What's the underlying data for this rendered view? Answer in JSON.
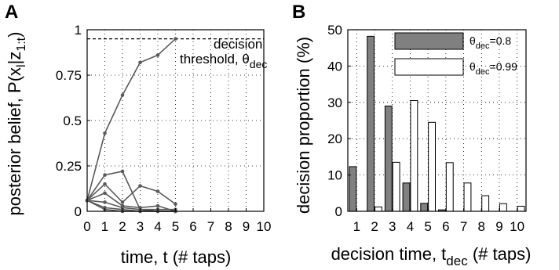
{
  "panels": {
    "a": {
      "label": "A"
    },
    "b": {
      "label": "B"
    }
  },
  "chart_data": [
    {
      "type": "line",
      "ylabel_main": "posterior belief, P(x",
      "ylabel_sub1": "l",
      "ylabel_mid": "|z",
      "ylabel_sub2": "1:t",
      "ylabel_end": ")",
      "xlabel": "time, t (# taps)",
      "xlim": [
        0,
        10
      ],
      "ylim": [
        0,
        1
      ],
      "xticks": [
        0,
        1,
        2,
        3,
        4,
        5,
        6,
        7,
        8,
        9,
        10
      ],
      "yticks": [
        0,
        0.25,
        0.5,
        0.75,
        1
      ],
      "ytick_labels": [
        "0",
        "0.25",
        "0.5",
        "0.75",
        "1"
      ],
      "grid": true,
      "line_color": "#5a5a5a",
      "threshold": {
        "y": 0.95,
        "label_line1": "decision",
        "label_line2": "threshold, θ",
        "label_sub": "dec"
      },
      "series": [
        {
          "x": [
            0,
            1,
            2,
            3,
            4,
            5
          ],
          "y": [
            0.06,
            0.43,
            0.64,
            0.82,
            0.86,
            0.95
          ]
        },
        {
          "x": [
            0,
            1,
            2,
            3,
            4,
            5
          ],
          "y": [
            0.06,
            0.2,
            0.22,
            0.01,
            0.01,
            0.01
          ]
        },
        {
          "x": [
            0,
            1,
            2,
            3,
            4,
            5
          ],
          "y": [
            0.06,
            0.15,
            0.05,
            0.14,
            0.11,
            0.04
          ]
        },
        {
          "x": [
            0,
            1,
            2,
            3,
            4,
            5
          ],
          "y": [
            0.06,
            0.1,
            0.03,
            0.02,
            0.03,
            0.0
          ]
        },
        {
          "x": [
            0,
            1,
            2,
            3,
            4,
            5
          ],
          "y": [
            0.06,
            0.05,
            0.02,
            0.01,
            0.0,
            0.0
          ]
        },
        {
          "x": [
            0,
            1,
            2,
            3,
            4,
            5
          ],
          "y": [
            0.06,
            0.02,
            0.01,
            0.0,
            0.0,
            0.0
          ]
        },
        {
          "x": [
            0,
            1,
            2,
            3,
            4,
            5
          ],
          "y": [
            0.06,
            0.01,
            0.0,
            0.0,
            0.0,
            0.0
          ]
        }
      ]
    },
    {
      "type": "bar",
      "ylabel": "decision proportion (%)",
      "xlabel_main": "decision time, t",
      "xlabel_sub": "dec",
      "xlabel_end": " (# taps)",
      "categories": [
        "1",
        "2",
        "3",
        "4",
        "5",
        "6",
        "7",
        "8",
        "9",
        "10"
      ],
      "ylim": [
        0,
        50
      ],
      "yticks": [
        0,
        10,
        20,
        30,
        40,
        50
      ],
      "grid": true,
      "legend_position": "top-right",
      "series": [
        {
          "theta": "θ",
          "sub": "dec",
          "value_label": "=0.8",
          "color": "#808080",
          "values": [
            12.3,
            48.2,
            29.0,
            7.8,
            2.2,
            0.4,
            0.0,
            0.0,
            0.0,
            0.0
          ]
        },
        {
          "theta": "θ",
          "sub": "dec",
          "value_label": "=0.99",
          "color": "#ffffff",
          "values": [
            0.0,
            1.2,
            13.5,
            30.5,
            24.5,
            13.4,
            7.8,
            4.3,
            2.1,
            1.4
          ]
        }
      ]
    }
  ]
}
